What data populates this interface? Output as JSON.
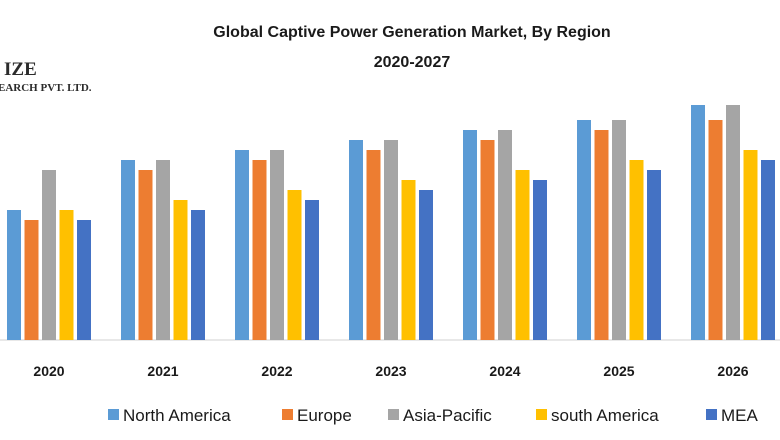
{
  "logo": {
    "line1": "IZE",
    "line2": "EARCH PVT. LTD."
  },
  "chart_data": {
    "type": "bar",
    "title": "Global Captive Power Generation Market, By Region",
    "subtitle": "2020-2027",
    "categories": [
      "2020",
      "2021",
      "2022",
      "2023",
      "2024",
      "2025",
      "2026"
    ],
    "ylim": [
      0,
      25
    ],
    "grid": false,
    "legend_position": "bottom",
    "series": [
      {
        "name": "North America",
        "color": "#5b9bd5",
        "values": [
          13,
          18,
          19,
          20,
          21,
          22,
          23.5
        ]
      },
      {
        "name": "Europe",
        "color": "#ed7d31",
        "values": [
          12,
          17,
          18,
          19,
          20,
          21,
          22
        ]
      },
      {
        "name": "Asia-Pacific",
        "color": "#a5a5a5",
        "values": [
          17,
          18,
          19,
          20,
          21,
          22,
          23.5
        ]
      },
      {
        "name": "south America",
        "color": "#ffc000",
        "values": [
          13,
          14,
          15,
          16,
          17,
          18,
          19
        ]
      },
      {
        "name": "MEA",
        "color": "#4472c4",
        "values": [
          12,
          13,
          14,
          15,
          16,
          17,
          18
        ]
      }
    ]
  }
}
